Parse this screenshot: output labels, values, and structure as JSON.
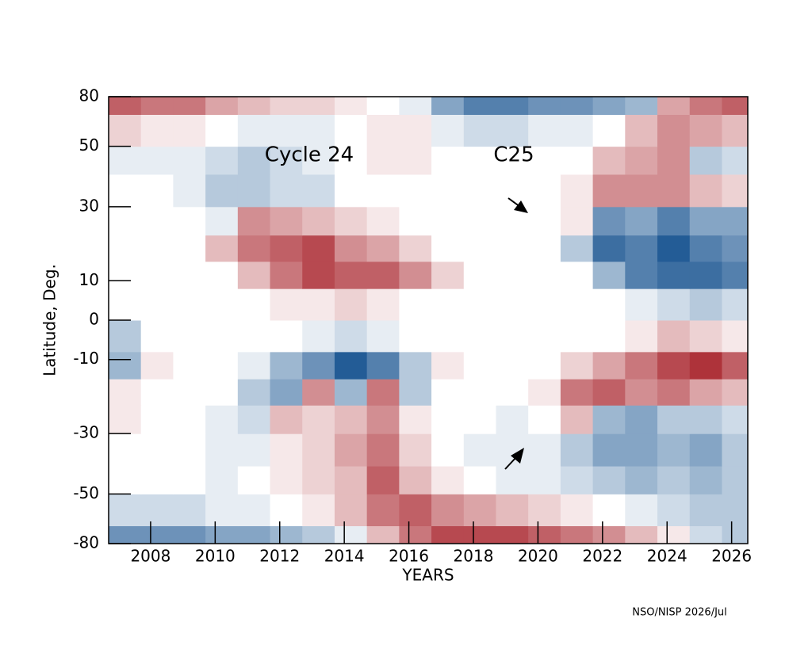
{
  "chart_data": {
    "type": "heatmap",
    "xlabel": "YEARS",
    "ylabel": "Latitude, Deg.",
    "annotations": [
      "Cycle 24",
      "C25"
    ],
    "credit": "NSO/NISP 2026/Jul",
    "xlim": [
      2006.7,
      2026.5
    ],
    "xticks": [
      2008,
      2010,
      2012,
      2014,
      2016,
      2018,
      2020,
      2022,
      2024,
      2026
    ],
    "ylim": [
      -80,
      80
    ],
    "yscale": "sine",
    "yticks": [
      80,
      50,
      30,
      10,
      0,
      -10,
      -30,
      -50,
      -80
    ],
    "zlim": [
      -1,
      1
    ],
    "colors": [
      "#0b4a8a",
      "#ffffff",
      "#a51c24"
    ],
    "x_edges": [
      2006.7,
      2007.7,
      2008.7,
      2009.7,
      2010.7,
      2011.7,
      2012.7,
      2013.7,
      2014.7,
      2015.7,
      2016.7,
      2017.7,
      2018.7,
      2019.7,
      2020.7,
      2021.7,
      2022.7,
      2023.7,
      2024.7,
      2025.7,
      2026.5
    ],
    "y_edges": [
      -80,
      -65,
      -50,
      -40,
      -30,
      -22,
      -15,
      -8,
      0,
      8,
      15,
      22,
      30,
      40,
      50,
      65,
      80
    ],
    "z": [
      [
        -0.6,
        -0.6,
        -0.6,
        -0.5,
        -0.5,
        -0.4,
        -0.3,
        -0.1,
        0.3,
        0.6,
        0.8,
        0.8,
        0.8,
        0.7,
        0.6,
        0.5,
        0.3,
        0.1,
        -0.2,
        -0.3
      ],
      [
        -0.2,
        -0.2,
        -0.2,
        -0.1,
        -0.1,
        0,
        0.1,
        0.3,
        0.6,
        0.7,
        0.5,
        0.4,
        0.3,
        0.2,
        0.1,
        0,
        -0.1,
        -0.2,
        -0.3,
        -0.3
      ],
      [
        0,
        0,
        0,
        -0.1,
        0,
        0.1,
        0.2,
        0.3,
        0.7,
        0.3,
        0.1,
        0,
        -0.1,
        -0.1,
        -0.2,
        -0.3,
        -0.4,
        -0.3,
        -0.4,
        -0.3
      ],
      [
        0,
        0,
        0,
        -0.1,
        -0.1,
        0.1,
        0.2,
        0.4,
        0.6,
        0.2,
        0,
        -0.1,
        -0.1,
        -0.1,
        -0.3,
        -0.5,
        -0.5,
        -0.4,
        -0.5,
        -0.3
      ],
      [
        0.1,
        0,
        0,
        -0.1,
        -0.2,
        0.3,
        0.2,
        0.3,
        0.5,
        0.1,
        0,
        0,
        -0.1,
        0,
        0.3,
        -0.4,
        -0.5,
        -0.3,
        -0.3,
        -0.2
      ],
      [
        0.1,
        0,
        0,
        0,
        -0.3,
        -0.5,
        0.5,
        -0.4,
        0.6,
        -0.3,
        0,
        0,
        0,
        0.1,
        0.6,
        0.7,
        0.5,
        0.6,
        0.4,
        0.3
      ],
      [
        -0.4,
        0.1,
        0,
        0,
        -0.1,
        -0.4,
        -0.6,
        -0.9,
        -0.7,
        -0.3,
        0.1,
        0,
        0,
        0,
        0.2,
        0.4,
        0.6,
        0.8,
        0.9,
        0.7
      ],
      [
        -0.3,
        0,
        0,
        0,
        0,
        0,
        -0.1,
        -0.2,
        -0.1,
        0,
        0,
        0,
        0,
        0,
        0,
        0,
        0.1,
        0.3,
        0.2,
        0.1
      ],
      [
        0,
        0,
        0,
        0,
        0,
        0.1,
        0.1,
        0.2,
        0.1,
        0,
        0,
        0,
        0,
        0,
        0,
        0,
        -0.1,
        -0.2,
        -0.3,
        -0.2
      ],
      [
        0,
        0,
        0,
        0,
        0.3,
        0.6,
        0.8,
        0.7,
        0.7,
        0.5,
        0.2,
        0,
        0,
        0,
        0,
        -0.4,
        -0.7,
        -0.8,
        -0.8,
        -0.7
      ],
      [
        0,
        0,
        0,
        0.3,
        0.6,
        0.7,
        0.8,
        0.5,
        0.4,
        0.2,
        0,
        0,
        0,
        0,
        -0.3,
        -0.8,
        -0.7,
        -0.9,
        -0.7,
        -0.6
      ],
      [
        0,
        0,
        0,
        -0.1,
        0.5,
        0.4,
        0.3,
        0.2,
        0.1,
        0,
        0,
        0,
        0,
        0,
        0.1,
        -0.6,
        -0.5,
        -0.7,
        -0.5,
        -0.5
      ],
      [
        0,
        0,
        -0.1,
        -0.3,
        -0.3,
        -0.2,
        -0.2,
        0,
        0,
        0,
        0,
        0,
        0,
        0,
        0.1,
        0.5,
        0.5,
        0.5,
        0.3,
        0.2
      ],
      [
        -0.1,
        -0.1,
        -0.1,
        -0.2,
        -0.3,
        -0.2,
        -0.1,
        0,
        0.1,
        0.1,
        0,
        0,
        0,
        0,
        0,
        0.3,
        0.4,
        0.5,
        -0.3,
        -0.2
      ],
      [
        0.2,
        0.1,
        0.1,
        0,
        -0.1,
        -0.1,
        -0.1,
        0,
        0.1,
        0.1,
        -0.1,
        -0.2,
        -0.2,
        -0.1,
        -0.1,
        0,
        0.3,
        0.5,
        0.4,
        0.3
      ],
      [
        0.7,
        0.6,
        0.6,
        0.4,
        0.3,
        0.2,
        0.2,
        0.1,
        0,
        -0.1,
        -0.5,
        -0.7,
        -0.7,
        -0.6,
        -0.6,
        -0.5,
        -0.4,
        0.4,
        0.6,
        0.7
      ]
    ]
  }
}
